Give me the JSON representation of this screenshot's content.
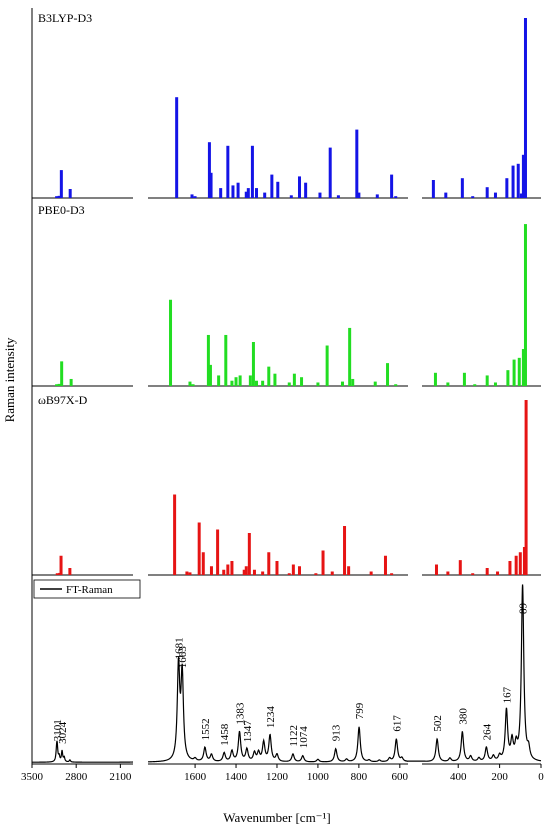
{
  "chart_data": {
    "type": "bar",
    "xlabel": "Wavenumber [cm⁻¹]",
    "ylabel": "Raman intensity",
    "x_direction": "reversed",
    "axis_segments": [
      {
        "xlim": [
          3500,
          1900
        ],
        "ticks": [
          3500,
          2800,
          2100
        ],
        "tick_labels": [
          "3500",
          "2800",
          "2100"
        ]
      },
      {
        "xlim": [
          1830,
          560
        ],
        "ticks": [
          1600,
          1400,
          1200,
          1000,
          800,
          600
        ],
        "tick_labels": [
          "1600",
          "1400",
          "1200",
          "1000",
          "800",
          "600"
        ]
      },
      {
        "xlim": [
          575,
          0
        ],
        "ticks": [
          400,
          200,
          0
        ],
        "tick_labels": [
          "400",
          "200",
          "0"
        ]
      }
    ],
    "series": [
      {
        "name": "B3LYP-D3",
        "color": "#1414e6",
        "peaks": [
          [
            3110,
            0.01
          ],
          [
            3070,
            0.012
          ],
          [
            3035,
            0.155
          ],
          [
            2895,
            0.05
          ],
          [
            1690,
            0.56
          ],
          [
            1615,
            0.02
          ],
          [
            1600,
            0.01
          ],
          [
            1530,
            0.31
          ],
          [
            1522,
            0.14
          ],
          [
            1475,
            0.055
          ],
          [
            1440,
            0.29
          ],
          [
            1415,
            0.07
          ],
          [
            1390,
            0.085
          ],
          [
            1350,
            0.035
          ],
          [
            1340,
            0.055
          ],
          [
            1320,
            0.29
          ],
          [
            1300,
            0.055
          ],
          [
            1260,
            0.03
          ],
          [
            1225,
            0.13
          ],
          [
            1196,
            0.09
          ],
          [
            1130,
            0.015
          ],
          [
            1090,
            0.12
          ],
          [
            1060,
            0.085
          ],
          [
            990,
            0.03
          ],
          [
            940,
            0.28
          ],
          [
            900,
            0.015
          ],
          [
            810,
            0.38
          ],
          [
            800,
            0.03
          ],
          [
            710,
            0.02
          ],
          [
            640,
            0.13
          ],
          [
            620,
            0.01
          ],
          [
            520,
            0.1
          ],
          [
            460,
            0.03
          ],
          [
            380,
            0.11
          ],
          [
            330,
            0.01
          ],
          [
            260,
            0.06
          ],
          [
            220,
            0.03
          ],
          [
            165,
            0.11
          ],
          [
            135,
            0.18
          ],
          [
            110,
            0.19
          ],
          [
            95,
            0.025
          ],
          [
            85,
            0.24
          ],
          [
            75,
            1.0
          ]
        ]
      },
      {
        "name": "PBE0-D3",
        "color": "#22dd22",
        "peaks": [
          [
            3110,
            0.01
          ],
          [
            3070,
            0.012
          ],
          [
            3030,
            0.14
          ],
          [
            2880,
            0.04
          ],
          [
            1720,
            0.49
          ],
          [
            1625,
            0.025
          ],
          [
            1610,
            0.01
          ],
          [
            1535,
            0.29
          ],
          [
            1525,
            0.12
          ],
          [
            1485,
            0.06
          ],
          [
            1450,
            0.29
          ],
          [
            1420,
            0.03
          ],
          [
            1400,
            0.05
          ],
          [
            1380,
            0.06
          ],
          [
            1330,
            0.06
          ],
          [
            1315,
            0.25
          ],
          [
            1300,
            0.03
          ],
          [
            1270,
            0.03
          ],
          [
            1240,
            0.11
          ],
          [
            1210,
            0.07
          ],
          [
            1140,
            0.02
          ],
          [
            1115,
            0.07
          ],
          [
            1080,
            0.05
          ],
          [
            1000,
            0.02
          ],
          [
            955,
            0.23
          ],
          [
            880,
            0.025
          ],
          [
            845,
            0.33
          ],
          [
            830,
            0.04
          ],
          [
            720,
            0.025
          ],
          [
            660,
            0.13
          ],
          [
            620,
            0.01
          ],
          [
            510,
            0.075
          ],
          [
            450,
            0.02
          ],
          [
            370,
            0.075
          ],
          [
            320,
            0.01
          ],
          [
            260,
            0.06
          ],
          [
            220,
            0.02
          ],
          [
            160,
            0.09
          ],
          [
            130,
            0.15
          ],
          [
            105,
            0.16
          ],
          [
            85,
            0.21
          ],
          [
            75,
            0.92
          ]
        ]
      },
      {
        "name": "ωB97X-D",
        "color": "#e61414",
        "peaks": [
          [
            3100,
            0.01
          ],
          [
            3060,
            0.012
          ],
          [
            3040,
            0.11
          ],
          [
            2900,
            0.04
          ],
          [
            1700,
            0.46
          ],
          [
            1640,
            0.02
          ],
          [
            1625,
            0.015
          ],
          [
            1580,
            0.3
          ],
          [
            1560,
            0.13
          ],
          [
            1520,
            0.05
          ],
          [
            1490,
            0.26
          ],
          [
            1460,
            0.03
          ],
          [
            1440,
            0.06
          ],
          [
            1420,
            0.08
          ],
          [
            1360,
            0.03
          ],
          [
            1350,
            0.05
          ],
          [
            1335,
            0.24
          ],
          [
            1310,
            0.03
          ],
          [
            1270,
            0.02
          ],
          [
            1240,
            0.13
          ],
          [
            1200,
            0.08
          ],
          [
            1140,
            0.01
          ],
          [
            1120,
            0.06
          ],
          [
            1090,
            0.05
          ],
          [
            1010,
            0.01
          ],
          [
            975,
            0.14
          ],
          [
            930,
            0.02
          ],
          [
            870,
            0.28
          ],
          [
            850,
            0.05
          ],
          [
            740,
            0.02
          ],
          [
            670,
            0.11
          ],
          [
            640,
            0.01
          ],
          [
            505,
            0.06
          ],
          [
            450,
            0.02
          ],
          [
            390,
            0.085
          ],
          [
            330,
            0.01
          ],
          [
            260,
            0.04
          ],
          [
            210,
            0.02
          ],
          [
            150,
            0.08
          ],
          [
            120,
            0.11
          ],
          [
            100,
            0.13
          ],
          [
            80,
            0.16
          ],
          [
            72,
            1.0
          ]
        ]
      },
      {
        "name": "FT-Raman",
        "color": "#000000",
        "style": "line",
        "peaks": [
          [
            3110,
            0.055
          ],
          [
            3101,
            0.075
          ],
          [
            3070,
            0.03
          ],
          [
            3024,
            0.06
          ],
          [
            2990,
            0.025
          ],
          [
            2900,
            0.012
          ],
          [
            1681,
            0.54
          ],
          [
            1663,
            0.49
          ],
          [
            1600,
            0.015
          ],
          [
            1552,
            0.08
          ],
          [
            1520,
            0.04
          ],
          [
            1458,
            0.05
          ],
          [
            1420,
            0.06
          ],
          [
            1383,
            0.17
          ],
          [
            1347,
            0.07
          ],
          [
            1310,
            0.05
          ],
          [
            1290,
            0.05
          ],
          [
            1265,
            0.11
          ],
          [
            1234,
            0.15
          ],
          [
            1200,
            0.04
          ],
          [
            1122,
            0.045
          ],
          [
            1074,
            0.035
          ],
          [
            1000,
            0.015
          ],
          [
            913,
            0.075
          ],
          [
            860,
            0.015
          ],
          [
            799,
            0.2
          ],
          [
            750,
            0.01
          ],
          [
            700,
            0.01
          ],
          [
            650,
            0.02
          ],
          [
            617,
            0.13
          ],
          [
            590,
            0.02
          ],
          [
            502,
            0.13
          ],
          [
            440,
            0.02
          ],
          [
            380,
            0.17
          ],
          [
            340,
            0.03
          ],
          [
            300,
            0.02
          ],
          [
            264,
            0.08
          ],
          [
            230,
            0.03
          ],
          [
            200,
            0.03
          ],
          [
            167,
            0.29
          ],
          [
            140,
            0.11
          ],
          [
            120,
            0.08
          ],
          [
            89,
            1.0
          ],
          [
            60,
            0.06
          ]
        ],
        "peak_labels": [
          {
            "x": 3101,
            "label": "3101"
          },
          {
            "x": 3024,
            "label": "3024"
          },
          {
            "x": 1681,
            "label": "1681"
          },
          {
            "x": 1663,
            "label": "1663"
          },
          {
            "x": 1552,
            "label": "1552"
          },
          {
            "x": 1458,
            "label": "1458"
          },
          {
            "x": 1383,
            "label": "1383"
          },
          {
            "x": 1347,
            "label": "1347"
          },
          {
            "x": 1234,
            "label": "1234"
          },
          {
            "x": 1122,
            "label": "1122"
          },
          {
            "x": 1074,
            "label": "1074"
          },
          {
            "x": 913,
            "label": "913"
          },
          {
            "x": 799,
            "label": "799"
          },
          {
            "x": 617,
            "label": "617"
          },
          {
            "x": 502,
            "label": "502"
          },
          {
            "x": 380,
            "label": "380"
          },
          {
            "x": 264,
            "label": "264"
          },
          {
            "x": 167,
            "label": "167"
          },
          {
            "x": 89,
            "label": "89"
          }
        ]
      }
    ],
    "legend": {
      "label": "FT-Raman",
      "placement": "top-left of bottom panel"
    }
  }
}
